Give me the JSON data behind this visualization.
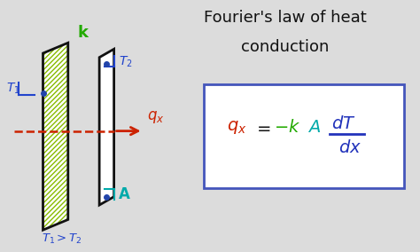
{
  "title_line1": "Fourier's law of heat",
  "title_line2": "conduction",
  "title_fontsize": 13,
  "title_color": "#111111",
  "bg_color": "#dcdcdc",
  "label_k_color": "#22aa00",
  "label_T1_color": "#2244cc",
  "label_T2_color": "#2244cc",
  "label_qx_color": "#cc2200",
  "label_A_color": "#00aaaa",
  "label_bottom_color": "#2244cc",
  "arrow_color": "#cc2200",
  "plate_color": "#111111",
  "hatch_color": "#88bb00",
  "formula_box_color": "#4455bb",
  "formula_qx_color": "#cc2200",
  "formula_k_color": "#22aa00",
  "formula_A_color": "#00aaaa",
  "formula_dT_color": "#2233bb",
  "formula_dx_color": "#2233bb",
  "formula_eq_color": "#111111",
  "dot_color": "#2244aa",
  "bracket_color": "#2244cc",
  "bracket_A_color": "#00aaaa"
}
